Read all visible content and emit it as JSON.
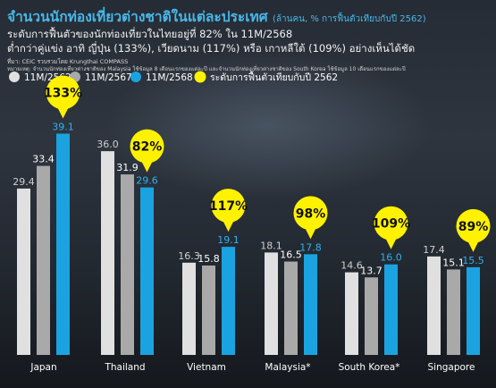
{
  "header": {
    "title": "จำนวนนักท่องเที่ยวต่างชาติในแต่ละประเทศ",
    "title_unit": "(ล้านคน, % การฟื้นตัวเทียบกับปี 2562)",
    "summary_line1": "ระดับการฟื้นตัวของนักท่องเที่ยวในไทยอยู่ที่ 82% ใน 11M/2568",
    "summary_line2": "ต่ำกว่าคู่แข่ง อาทิ ญี่ปุ่น (133%), เวียดนาม (117%) หรือ เกาหลีใต้ (109%) อย่างเห็นได้ชัด",
    "source": "ที่มา: CEIC รวบรวมโดย Krungthai COMPASS",
    "note": "หมายเหตุ: จำนวนนักท่องเที่ยวต่างชาติของ Malaysia ใช้ข้อมูล 8 เดือนแรกของแต่ละปี และจำนวนนักท่องเที่ยวต่างชาติของ South Korea ใช้ข้อมูล 10 เดือนแรกของแต่ละปี"
  },
  "colors": {
    "s2562": "#e0e0e0",
    "s2567": "#a9a9a9",
    "s2568": "#1aa3e0",
    "bubble": "#fff200"
  },
  "chart_data": {
    "type": "bar",
    "title": "จำนวนนักท่องเที่ยวต่างชาติในแต่ละประเทศ",
    "ylabel": "(ล้านคน, % การฟื้นตัวเทียบกับปี 2562)",
    "legend_position": "top",
    "categories": [
      "Japan",
      "Thailand",
      "Vietnam",
      "Malaysia*",
      "South Korea*",
      "Singapore"
    ],
    "series": [
      {
        "name": "11M/2562",
        "values": [
          29.4,
          36.0,
          16.3,
          18.1,
          14.6,
          17.4
        ]
      },
      {
        "name": "11M/2567",
        "values": [
          33.4,
          31.9,
          15.8,
          16.5,
          13.7,
          15.1
        ]
      },
      {
        "name": "11M/2568",
        "values": [
          39.1,
          29.6,
          19.1,
          17.8,
          16.0,
          15.5
        ]
      }
    ],
    "recovery": {
      "name": "ระดับการฟื้นตัวเทียบกับปี 2562",
      "labels": [
        "133%",
        "82%",
        "117%",
        "98%",
        "109%",
        "89%"
      ]
    },
    "value_labels": [
      [
        "29.4",
        "33.4",
        "39.1"
      ],
      [
        "36.0",
        "31.9",
        "29.6"
      ],
      [
        "16.3",
        "15.8",
        "19.1"
      ],
      [
        "18.1",
        "16.5",
        "17.8"
      ],
      [
        "14.6",
        "13.7",
        "16.0"
      ],
      [
        "17.4",
        "15.1",
        "15.5"
      ]
    ],
    "ylim": [
      0,
      40
    ]
  }
}
